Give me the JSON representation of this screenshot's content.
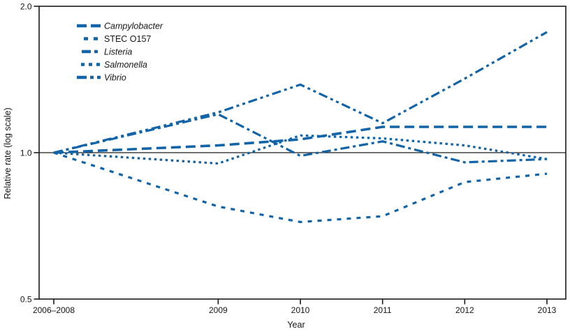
{
  "chart_data": {
    "type": "line",
    "title": "",
    "xlabel": "Year",
    "ylabel": "Relative rate (log scale)",
    "y_scale": "log",
    "ylim": [
      0.5,
      2.0
    ],
    "baseline": 1.0,
    "grid": false,
    "legend_position": "top-left",
    "line_color": "#1164a8",
    "x": [
      2007,
      2009,
      2010,
      2011,
      2012,
      2013
    ],
    "x_tick_labels": [
      "2006–2008",
      "2009",
      "2010",
      "2011",
      "2012",
      "2013"
    ],
    "y_ticks": [
      {
        "value": 2.0,
        "label": "2.0"
      },
      {
        "value": 1.0,
        "label": "1.0"
      },
      {
        "value": 0.5,
        "label": "0.5"
      }
    ],
    "series": [
      {
        "name": "Campylobacter",
        "italic": true,
        "line_style": "long-dash",
        "values": [
          1.0,
          1.035,
          1.065,
          1.13,
          1.13,
          1.13
        ]
      },
      {
        "name": "STEC O157",
        "italic": false,
        "line_style": "dash",
        "values": [
          1.0,
          0.775,
          0.72,
          0.74,
          0.87,
          0.905
        ]
      },
      {
        "name": "Listeria",
        "italic": true,
        "line_style": "dash-dot",
        "values": [
          1.0,
          1.2,
          0.985,
          1.055,
          0.955,
          0.97
        ]
      },
      {
        "name": "Salmonella",
        "italic": true,
        "line_style": "dot",
        "values": [
          1.0,
          0.95,
          1.085,
          1.07,
          1.035,
          0.97
        ]
      },
      {
        "name": "Vibrio",
        "italic": true,
        "line_style": "dash-dot-dot",
        "values": [
          1.0,
          1.21,
          1.38,
          1.15,
          1.42,
          1.77
        ]
      }
    ]
  }
}
